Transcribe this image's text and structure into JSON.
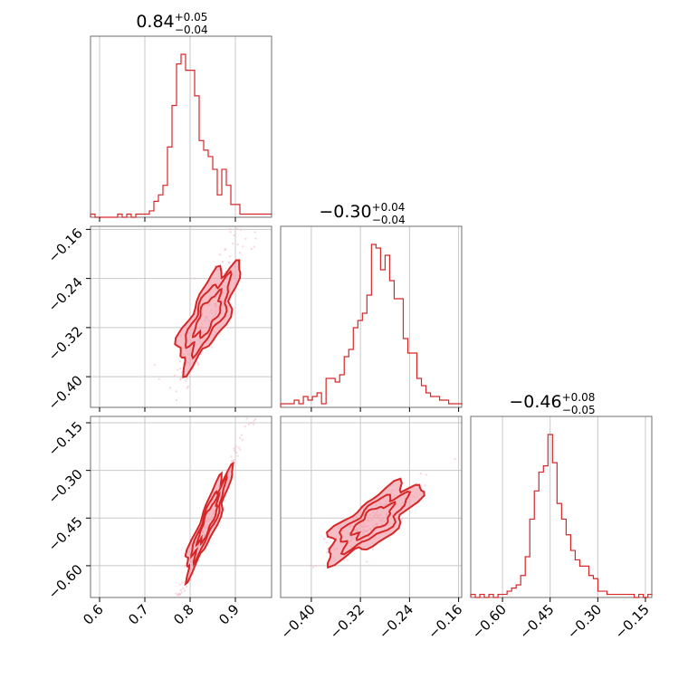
{
  "chart_data": {
    "type": "corner",
    "color": "#d62728",
    "parameters": [
      {
        "median": "0.84",
        "plus": "+0.05",
        "minus": "−0.04",
        "range": [
          0.58,
          0.98
        ],
        "ticks": [
          0.6,
          0.7,
          0.8,
          0.9
        ],
        "tick_labels": [
          "0.6",
          "0.7",
          "0.8",
          "0.9"
        ]
      },
      {
        "median": "−0.30",
        "plus": "+0.04",
        "minus": "−0.04",
        "range": [
          -0.45,
          -0.155
        ],
        "ticks": [
          -0.4,
          -0.32,
          -0.24,
          -0.16
        ],
        "tick_labels": [
          "−0.40",
          "−0.32",
          "−0.24",
          "−0.16"
        ]
      },
      {
        "median": "−0.46",
        "plus": "+0.08",
        "minus": "−0.05",
        "range": [
          -0.7,
          -0.13
        ],
        "ticks": [
          -0.6,
          -0.45,
          -0.3,
          -0.15
        ],
        "tick_labels": [
          "−0.60",
          "−0.45",
          "−0.30",
          "−0.15"
        ]
      }
    ],
    "histograms": [
      {
        "x_start": 0.58,
        "bin_width": 0.01,
        "counts": [
          1,
          0,
          0,
          0,
          0,
          0,
          1,
          0,
          1,
          0,
          1,
          1,
          1,
          2,
          5,
          7,
          10,
          22,
          35,
          48,
          51,
          46,
          46,
          38,
          24,
          21,
          19,
          15,
          7,
          15,
          10,
          4,
          4,
          1,
          1,
          1,
          1,
          1,
          1,
          1
        ]
      },
      {
        "x_start": -0.45,
        "bin_width": 0.0074,
        "counts": [
          1,
          1,
          1,
          2,
          1,
          3,
          2,
          3,
          4,
          1,
          8,
          8,
          7,
          9,
          14,
          16,
          22,
          24,
          26,
          31,
          45,
          44,
          38,
          42,
          35,
          30,
          30,
          19,
          15,
          15,
          8,
          6,
          4,
          3,
          3,
          2,
          2,
          1,
          1,
          1
        ]
      },
      {
        "x_start": -0.7,
        "bin_width": 0.0143,
        "counts": [
          1,
          0,
          1,
          0,
          1,
          0,
          1,
          1,
          2,
          3,
          4,
          7,
          13,
          25,
          34,
          40,
          42,
          52,
          43,
          30,
          25,
          20,
          15,
          12,
          10,
          10,
          7,
          6,
          2,
          2,
          1,
          1,
          1,
          1,
          1,
          1,
          0,
          1,
          0,
          1
        ]
      }
    ],
    "correlations": [
      {
        "pair": [
          0,
          1
        ],
        "slope": 1.45,
        "spread": 0.6
      },
      {
        "pair": [
          0,
          2
        ],
        "slope": 3.5,
        "spread": 0.15
      },
      {
        "pair": [
          1,
          2
        ],
        "slope": 1.5,
        "spread": 0.7
      }
    ],
    "grid": true
  }
}
